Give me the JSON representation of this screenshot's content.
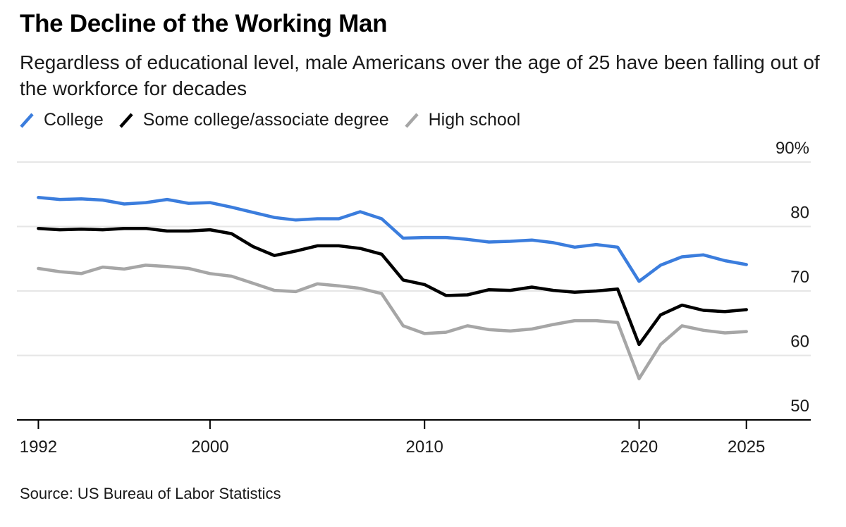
{
  "title": "The Decline of the Working Man",
  "subtitle": "Regardless of educational level, male Americans over the age of 25 have been falling out of the workforce for decades",
  "source": "Source: US Bureau of Labor Statistics",
  "colors": {
    "college": "#3b7ddd",
    "some_college": "#000000",
    "high_school": "#a6a6a6",
    "grid": "#e6e6e6",
    "axis": "#000000"
  },
  "chart_data": {
    "type": "line",
    "title": "The Decline of the Working Man",
    "xlabel": "",
    "ylabel": "",
    "xlim": [
      1991,
      2028
    ],
    "ylim": [
      50,
      90
    ],
    "x_ticks": [
      1992,
      2000,
      2010,
      2020,
      2025
    ],
    "x_tick_labels": [
      "1992",
      "2000",
      "2010",
      "2020",
      "2025"
    ],
    "y_ticks": [
      50,
      60,
      70,
      80,
      90
    ],
    "y_tick_labels": [
      "50",
      "60",
      "70",
      "80",
      "90%"
    ],
    "grid": true,
    "legend": "top-left",
    "x": [
      1992,
      1993,
      1994,
      1995,
      1996,
      1997,
      1998,
      1999,
      2000,
      2001,
      2002,
      2003,
      2004,
      2005,
      2006,
      2007,
      2008,
      2009,
      2010,
      2011,
      2012,
      2013,
      2014,
      2015,
      2016,
      2017,
      2018,
      2019,
      2020,
      2021,
      2022,
      2023,
      2024,
      2025
    ],
    "series": [
      {
        "name": "College",
        "key": "college",
        "values": [
          84.5,
          84.2,
          84.3,
          84.1,
          83.5,
          83.7,
          84.2,
          83.6,
          83.7,
          83.0,
          82.2,
          81.4,
          81.0,
          81.2,
          81.2,
          82.3,
          81.2,
          78.2,
          78.3,
          78.3,
          78.0,
          77.6,
          77.7,
          77.9,
          77.5,
          76.8,
          77.2,
          76.8,
          71.5,
          74.0,
          75.3,
          75.6,
          74.7,
          74.1
        ],
        "color": "#3b7ddd"
      },
      {
        "name": "Some college/associate degree",
        "key": "some_college",
        "values": [
          79.7,
          79.5,
          79.6,
          79.5,
          79.7,
          79.7,
          79.3,
          79.3,
          79.5,
          78.9,
          76.9,
          75.5,
          76.2,
          77.0,
          77.0,
          76.6,
          75.7,
          71.7,
          71.0,
          69.3,
          69.4,
          70.2,
          70.1,
          70.6,
          70.1,
          69.8,
          70.0,
          70.3,
          61.7,
          66.3,
          67.8,
          67.0,
          66.8,
          67.1
        ],
        "color": "#000000"
      },
      {
        "name": "High school",
        "key": "high_school",
        "values": [
          73.5,
          73.0,
          72.7,
          73.7,
          73.4,
          74.0,
          73.8,
          73.5,
          72.7,
          72.3,
          71.2,
          70.1,
          69.9,
          71.1,
          70.8,
          70.4,
          69.6,
          64.6,
          63.4,
          63.6,
          64.6,
          64.0,
          63.8,
          64.1,
          64.8,
          65.4,
          65.4,
          65.1,
          56.4,
          61.7,
          64.6,
          63.9,
          63.5,
          63.7
        ],
        "color": "#a6a6a6"
      }
    ]
  }
}
